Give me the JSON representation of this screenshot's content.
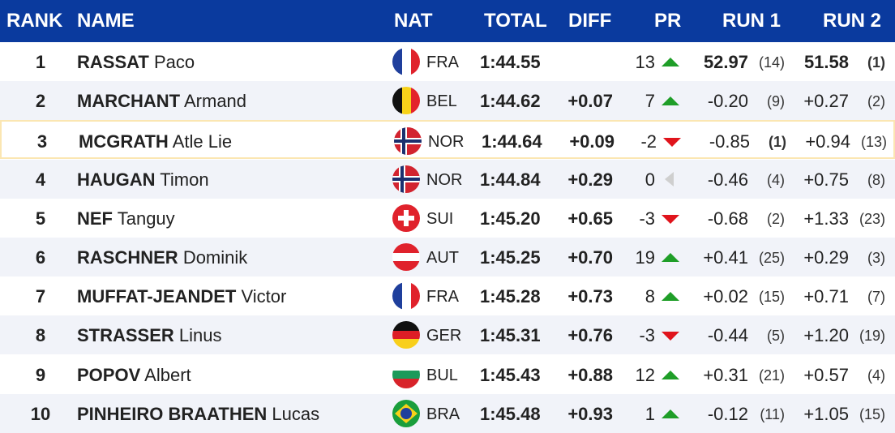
{
  "header": {
    "rank": "RANK",
    "name": "NAME",
    "nat": "NAT",
    "total": "TOTAL",
    "diff": "DIFF",
    "pr": "PR",
    "run1": "RUN 1",
    "run2": "RUN 2"
  },
  "colors": {
    "header_bg": "#0a3a9e",
    "up": "#1f9e28",
    "down": "#e0141c",
    "highlight_border": "#fbe6b2"
  },
  "rows": [
    {
      "rank": "1",
      "last": "RASSAT",
      "first": "Paco",
      "nat": "FRA",
      "flag": "flag-fra-icon",
      "total": "1:44.55",
      "diff": "",
      "pr": "13",
      "trend": "up",
      "run1": "52.97",
      "run1_rank": "(14)",
      "run2": "51.58",
      "run2_rank": "(1)"
    },
    {
      "rank": "2",
      "last": "MARCHANT",
      "first": "Armand",
      "nat": "BEL",
      "flag": "flag-bel-icon",
      "total": "1:44.62",
      "diff": "+0.07",
      "pr": "7",
      "trend": "up",
      "run1": "-0.20",
      "run1_rank": "(9)",
      "run2": "+0.27",
      "run2_rank": "(2)"
    },
    {
      "rank": "3",
      "last": "MCGRATH",
      "first": "Atle Lie",
      "nat": "NOR",
      "flag": "flag-nor-icon",
      "total": "1:44.64",
      "diff": "+0.09",
      "pr": "-2",
      "trend": "down",
      "run1": "-0.85",
      "run1_rank": "(1)",
      "run2": "+0.94",
      "run2_rank": "(13)"
    },
    {
      "rank": "4",
      "last": "HAUGAN",
      "first": "Timon",
      "nat": "NOR",
      "flag": "flag-nor-icon",
      "total": "1:44.84",
      "diff": "+0.29",
      "pr": "0",
      "trend": "flat",
      "run1": "-0.46",
      "run1_rank": "(4)",
      "run2": "+0.75",
      "run2_rank": "(8)"
    },
    {
      "rank": "5",
      "last": "NEF",
      "first": "Tanguy",
      "nat": "SUI",
      "flag": "flag-sui-icon",
      "total": "1:45.20",
      "diff": "+0.65",
      "pr": "-3",
      "trend": "down",
      "run1": "-0.68",
      "run1_rank": "(2)",
      "run2": "+1.33",
      "run2_rank": "(23)"
    },
    {
      "rank": "6",
      "last": "RASCHNER",
      "first": "Dominik",
      "nat": "AUT",
      "flag": "flag-aut-icon",
      "total": "1:45.25",
      "diff": "+0.70",
      "pr": "19",
      "trend": "up",
      "run1": "+0.41",
      "run1_rank": "(25)",
      "run2": "+0.29",
      "run2_rank": "(3)"
    },
    {
      "rank": "7",
      "last": "MUFFAT-JEANDET",
      "first": "Victor",
      "nat": "FRA",
      "flag": "flag-fra-icon",
      "total": "1:45.28",
      "diff": "+0.73",
      "pr": "8",
      "trend": "up",
      "run1": "+0.02",
      "run1_rank": "(15)",
      "run2": "+0.71",
      "run2_rank": "(7)"
    },
    {
      "rank": "8",
      "last": "STRASSER",
      "first": "Linus",
      "nat": "GER",
      "flag": "flag-ger-icon",
      "total": "1:45.31",
      "diff": "+0.76",
      "pr": "-3",
      "trend": "down",
      "run1": "-0.44",
      "run1_rank": "(5)",
      "run2": "+1.20",
      "run2_rank": "(19)"
    },
    {
      "rank": "9",
      "last": "POPOV",
      "first": "Albert",
      "nat": "BUL",
      "flag": "flag-bul-icon",
      "total": "1:45.43",
      "diff": "+0.88",
      "pr": "12",
      "trend": "up",
      "run1": "+0.31",
      "run1_rank": "(21)",
      "run2": "+0.57",
      "run2_rank": "(4)"
    },
    {
      "rank": "10",
      "last": "PINHEIRO BRAATHEN",
      "first": "Lucas",
      "nat": "BRA",
      "flag": "flag-bra-icon",
      "total": "1:45.48",
      "diff": "+0.93",
      "pr": "1",
      "trend": "up",
      "run1": "-0.12",
      "run1_rank": "(11)",
      "run2": "+1.05",
      "run2_rank": "(15)"
    }
  ]
}
